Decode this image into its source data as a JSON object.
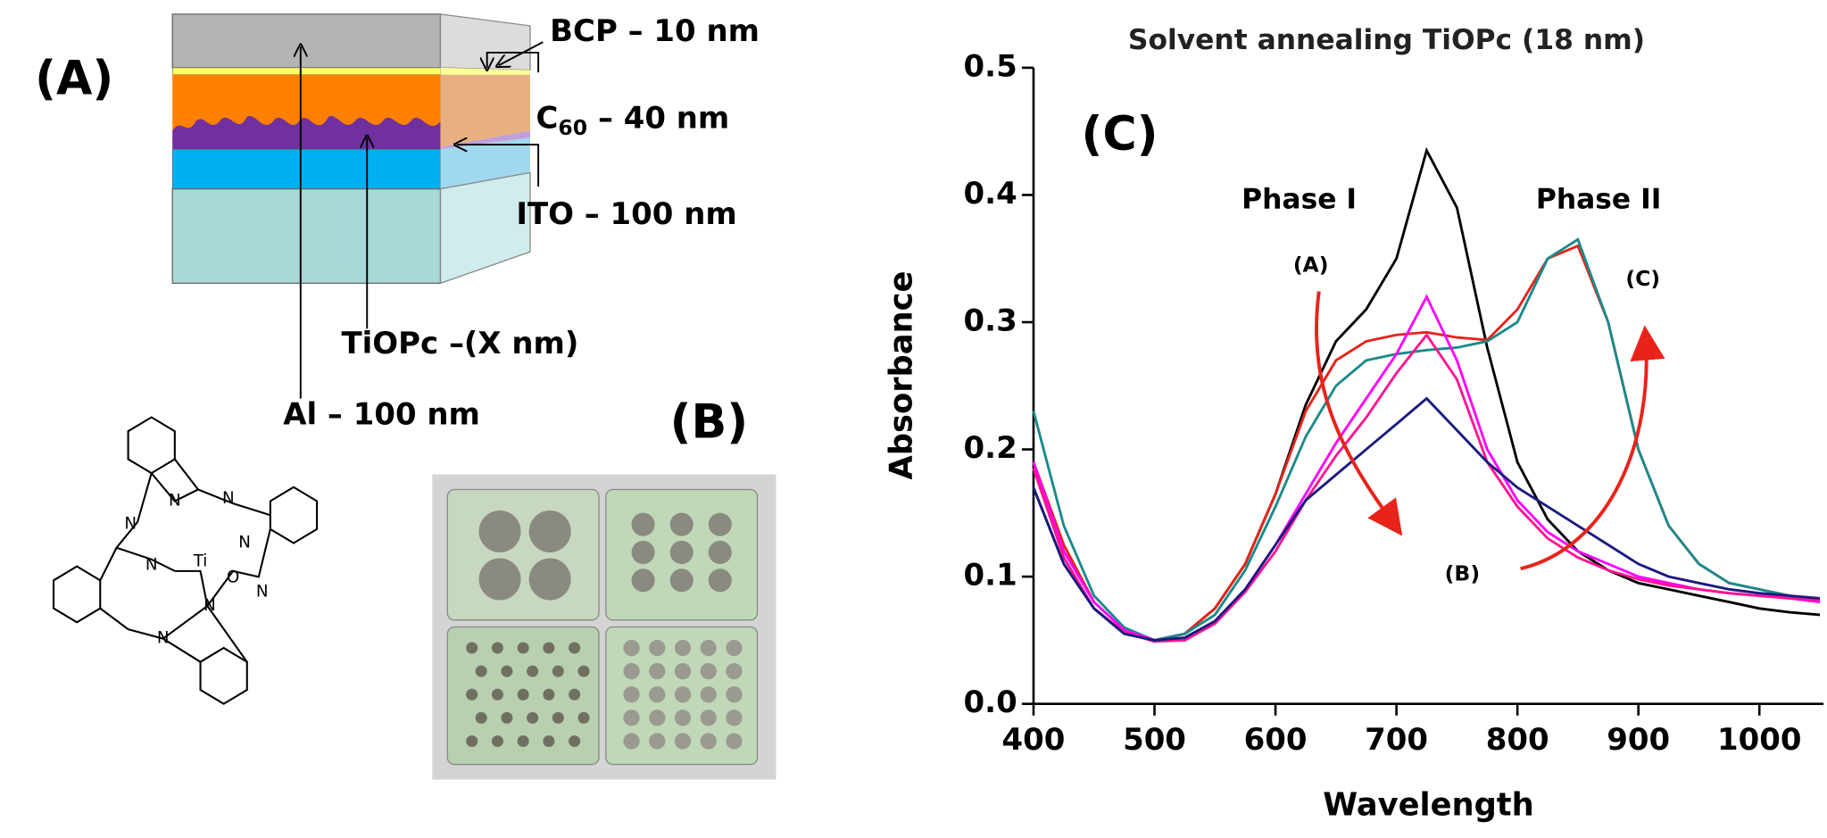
{
  "panel_a": {
    "label": "(A)",
    "layers": {
      "bcp": "BCP – 10 nm",
      "c60": {
        "main": "C",
        "sub": "60",
        "rest": " – 40 nm"
      },
      "ito": "ITO – 100 nm",
      "tiopc": "TiOPc –(X nm)",
      "al": "Al – 100 nm"
    },
    "molecule": {
      "atoms": [
        "N",
        "N",
        "N",
        "N",
        "N",
        "N",
        "N",
        "N",
        "Ti",
        "O"
      ]
    }
  },
  "panel_b": {
    "label": "(B)"
  },
  "chart_data": {
    "type": "line",
    "panel_label": "(C)",
    "title": "Solvent annealing TiOPc (18 nm)",
    "x_label": "Wavelength",
    "y_label": "Absorbance",
    "annotations": [
      "Phase I",
      "Phase II",
      "(A)",
      "(B)",
      "(C)"
    ],
    "x": [
      400,
      425,
      450,
      475,
      500,
      525,
      550,
      575,
      600,
      625,
      650,
      675,
      700,
      725,
      750,
      775,
      800,
      825,
      850,
      875,
      900,
      925,
      950,
      975,
      1000,
      1025,
      1050
    ],
    "series": [
      {
        "color": "#000000",
        "values": [
          0.17,
          0.11,
          0.075,
          0.055,
          0.05,
          0.055,
          0.075,
          0.11,
          0.165,
          0.235,
          0.285,
          0.31,
          0.35,
          0.435,
          0.39,
          0.28,
          0.19,
          0.145,
          0.12,
          0.105,
          0.095,
          0.09,
          0.085,
          0.08,
          0.075,
          0.072,
          0.07
        ]
      },
      {
        "color": "#e8231a",
        "values": [
          0.19,
          0.125,
          0.08,
          0.058,
          0.05,
          0.055,
          0.075,
          0.11,
          0.165,
          0.23,
          0.27,
          0.285,
          0.29,
          0.292,
          0.288,
          0.286,
          0.31,
          0.35,
          0.36,
          0.3,
          0.2,
          0.14,
          0.11,
          0.095,
          0.09,
          0.085,
          0.08
        ]
      },
      {
        "color": "#1a8a8a",
        "values": [
          0.23,
          0.14,
          0.085,
          0.06,
          0.05,
          0.055,
          0.07,
          0.105,
          0.155,
          0.21,
          0.25,
          0.27,
          0.275,
          0.278,
          0.28,
          0.285,
          0.3,
          0.35,
          0.365,
          0.3,
          0.2,
          0.14,
          0.11,
          0.095,
          0.09,
          0.085,
          0.08
        ]
      },
      {
        "color": "#ff00ff",
        "values": [
          0.19,
          0.12,
          0.08,
          0.058,
          0.05,
          0.05,
          0.065,
          0.09,
          0.125,
          0.165,
          0.205,
          0.24,
          0.275,
          0.32,
          0.27,
          0.2,
          0.16,
          0.135,
          0.12,
          0.11,
          0.1,
          0.095,
          0.09,
          0.087,
          0.085,
          0.083,
          0.08
        ]
      },
      {
        "color": "#ff1493",
        "values": [
          0.185,
          0.115,
          0.075,
          0.056,
          0.049,
          0.05,
          0.063,
          0.088,
          0.12,
          0.16,
          0.195,
          0.225,
          0.26,
          0.29,
          0.255,
          0.19,
          0.155,
          0.13,
          0.115,
          0.105,
          0.098,
          0.093,
          0.09,
          0.087,
          0.085,
          0.083,
          0.082
        ]
      },
      {
        "color": "#1a1a80",
        "values": [
          0.17,
          0.11,
          0.075,
          0.055,
          0.05,
          0.052,
          0.065,
          0.09,
          0.125,
          0.16,
          0.18,
          0.2,
          0.22,
          0.24,
          0.215,
          0.19,
          0.17,
          0.155,
          0.14,
          0.125,
          0.11,
          0.1,
          0.095,
          0.09,
          0.087,
          0.085,
          0.083
        ]
      }
    ],
    "xlim": [
      400,
      1053
    ],
    "ylim": [
      0,
      0.5
    ],
    "xticks": [
      400,
      500,
      600,
      700,
      800,
      900,
      1000
    ],
    "yticks": [
      {
        "value": 0,
        "label": "0.0"
      },
      0.1,
      0.2,
      0.3,
      0.4,
      0.5
    ]
  }
}
